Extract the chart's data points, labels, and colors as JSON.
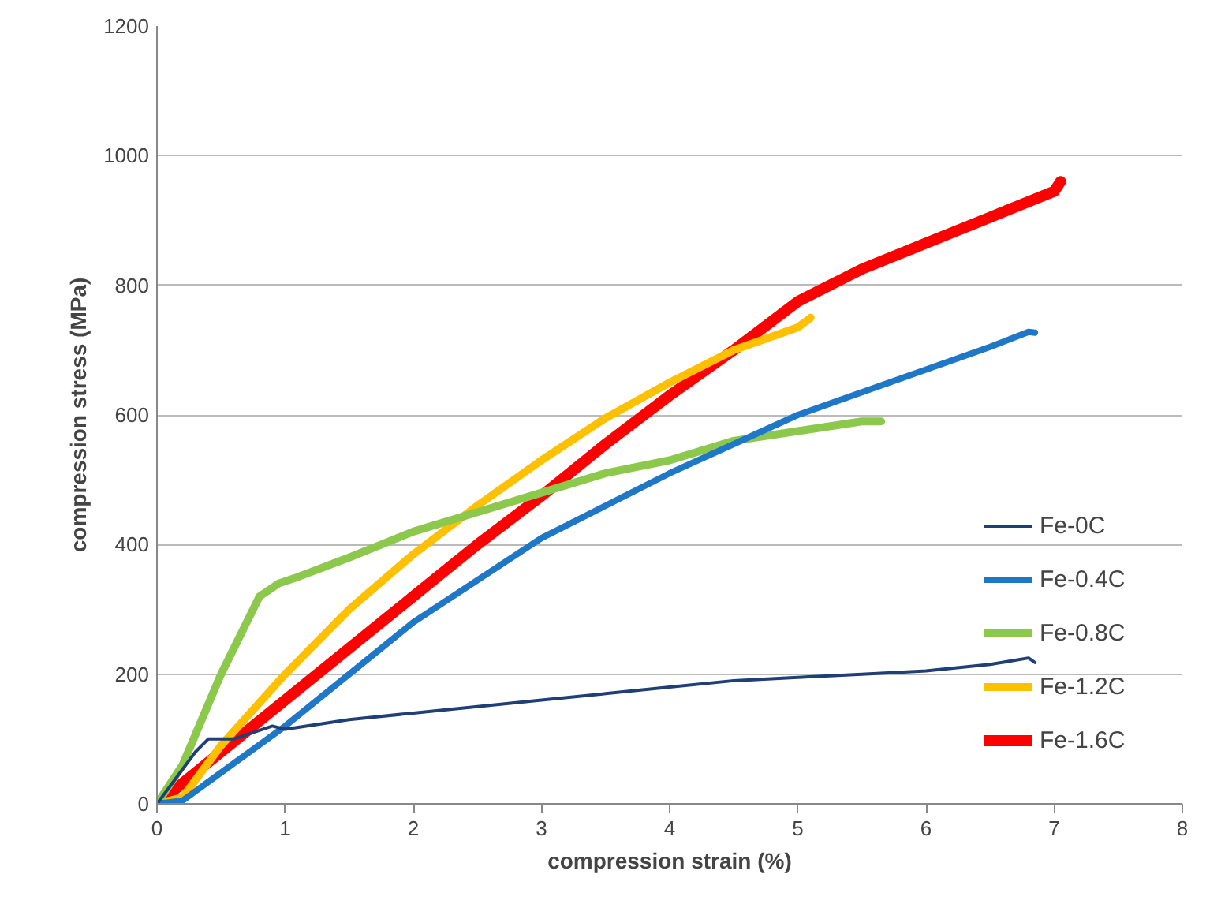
{
  "chart_data": {
    "type": "line",
    "xlabel": "compression strain (%)",
    "ylabel": "compression stress (MPa)",
    "xlim": [
      0,
      8
    ],
    "xticks": [
      0,
      1,
      2,
      3,
      4,
      5,
      6,
      7,
      8
    ],
    "ylim": [
      0,
      1200
    ],
    "yticks": [
      0,
      200,
      400,
      600,
      800,
      1000,
      1200
    ],
    "grid": "y",
    "legend": "right",
    "marker": "none",
    "line_style": "solid",
    "series": [
      {
        "name": "Fe-0C",
        "color": "#1f3f77",
        "x": [
          0,
          0.3,
          0.4,
          0.6,
          0.9,
          1.0,
          1.5,
          2,
          2.5,
          3,
          3.5,
          4,
          4.5,
          5,
          5.5,
          6,
          6.5,
          6.8,
          6.85
        ],
        "values": [
          0,
          80,
          100,
          100,
          120,
          115,
          130,
          140,
          150,
          160,
          170,
          180,
          190,
          195,
          200,
          205,
          215,
          225,
          218
        ]
      },
      {
        "name": "Fe-0.4C",
        "color": "#1f77c8",
        "x": [
          0,
          0.2,
          1,
          2,
          3,
          4,
          5,
          6,
          6.5,
          6.8,
          6.85
        ],
        "values": [
          0,
          5,
          120,
          280,
          410,
          510,
          600,
          670,
          705,
          728,
          727
        ]
      },
      {
        "name": "Fe-0.8C",
        "color": "#8cc84b",
        "x": [
          0,
          0.2,
          0.5,
          0.8,
          0.95,
          1.1,
          1.5,
          2,
          2.5,
          3,
          3.5,
          4,
          4.5,
          5,
          5.5,
          5.65
        ],
        "values": [
          0,
          60,
          200,
          320,
          340,
          350,
          380,
          420,
          450,
          480,
          510,
          530,
          560,
          575,
          590,
          590
        ]
      },
      {
        "name": "Fe-1.2C",
        "color": "#ffc000",
        "x": [
          0,
          0.2,
          0.5,
          1,
          1.5,
          2,
          2.5,
          3,
          3.5,
          4,
          4.5,
          5,
          5.1
        ],
        "values": [
          0,
          10,
          90,
          200,
          300,
          385,
          460,
          530,
          595,
          650,
          700,
          735,
          750
        ]
      },
      {
        "name": "Fe-1.6C",
        "color": "#ff0000",
        "x": [
          0,
          0.5,
          1,
          1.5,
          2,
          2.5,
          3,
          3.5,
          4,
          4.5,
          5,
          5.5,
          6,
          6.5,
          7,
          7.05
        ],
        "values": [
          0,
          80,
          160,
          240,
          320,
          400,
          475,
          555,
          630,
          700,
          775,
          825,
          865,
          905,
          945,
          960
        ]
      }
    ]
  }
}
